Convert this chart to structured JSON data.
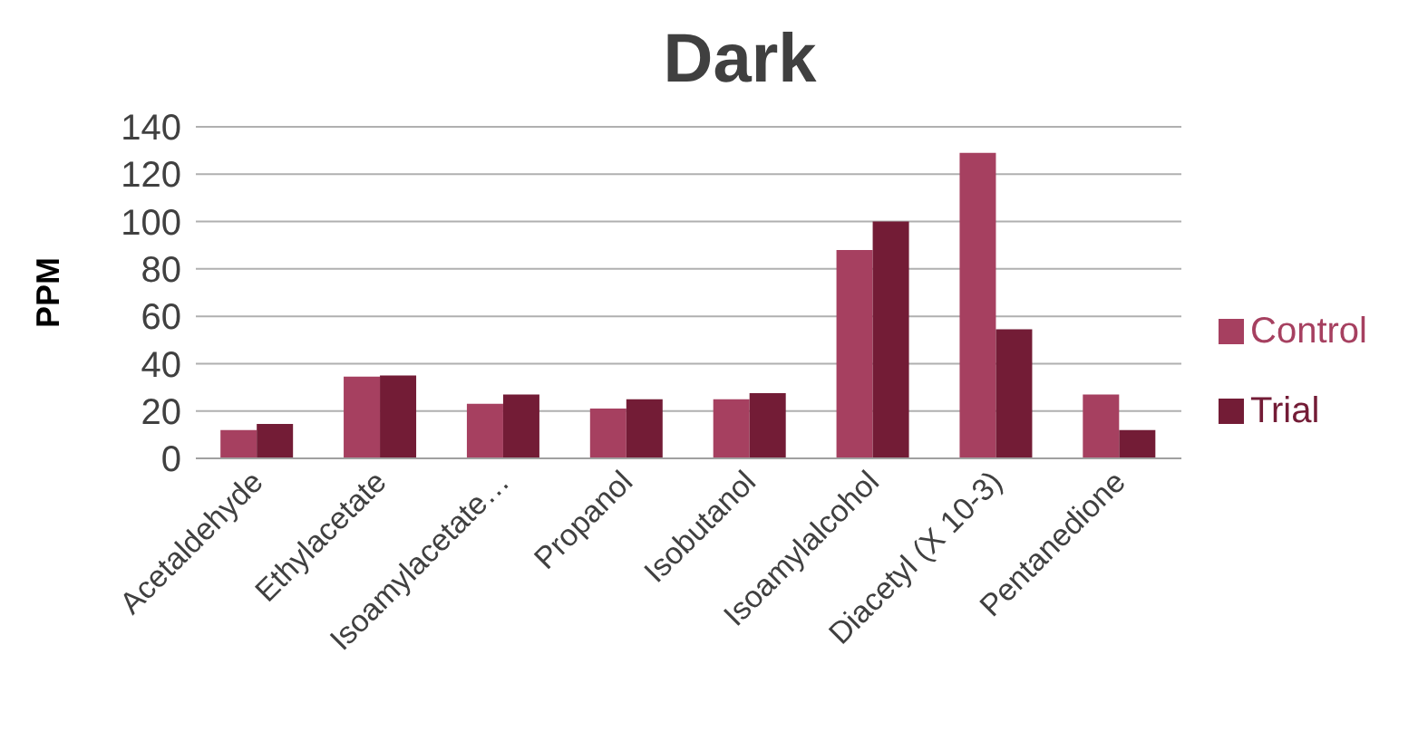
{
  "chart_data": {
    "type": "bar",
    "title": "Dark",
    "ylabel": "PPM",
    "categories": [
      "Acetaldehyde",
      "Ethylacetate",
      "Isoamylacetate…",
      "Propanol",
      "Isobutanol",
      "Isoamylalcohol",
      "Diacetyl (X 10-3)",
      "Pentanedione"
    ],
    "series": [
      {
        "name": "Control",
        "color": "#a64060",
        "values": [
          12,
          34.5,
          23,
          21,
          25,
          88,
          129,
          27
        ]
      },
      {
        "name": "Trial",
        "color": "#731c36",
        "values": [
          14.5,
          35,
          27,
          25,
          27.5,
          100,
          54.5,
          12
        ]
      }
    ],
    "ylim": [
      0,
      140
    ],
    "yticks": [
      0,
      20,
      40,
      60,
      80,
      100,
      120,
      140
    ],
    "grid": "y",
    "legend": "right"
  }
}
